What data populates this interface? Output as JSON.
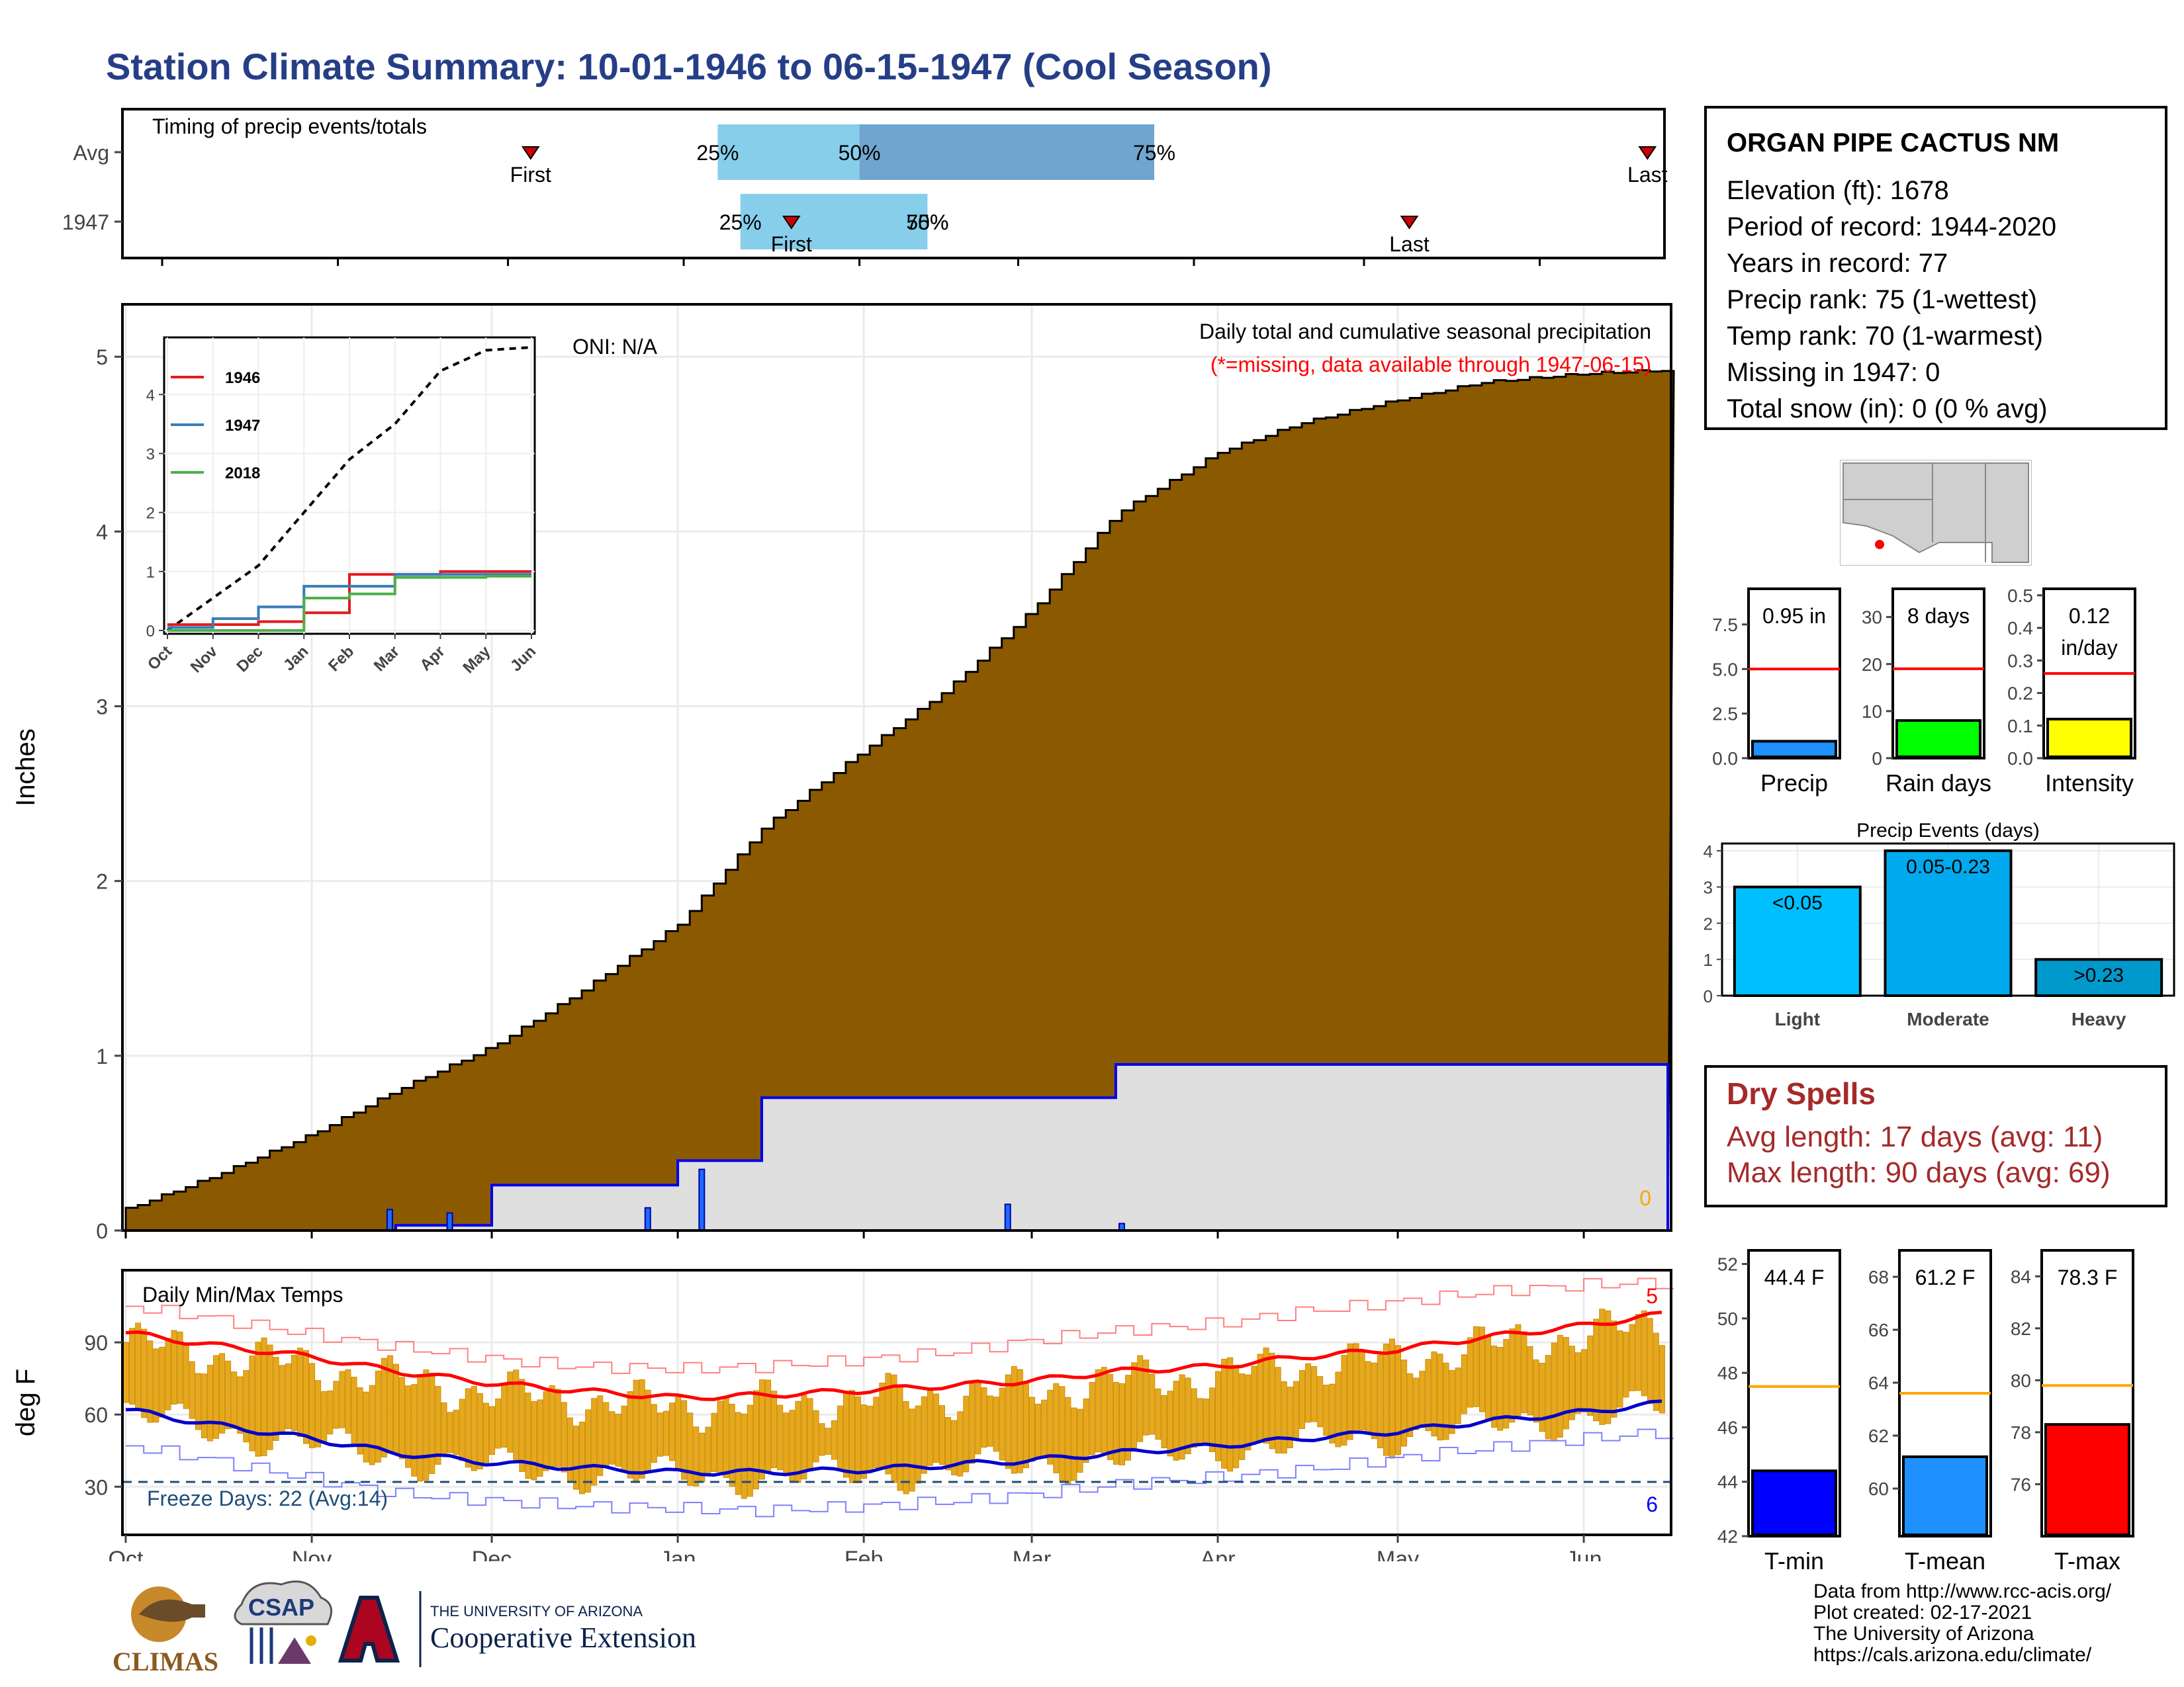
{
  "title": "Station Climate Summary: 10-01-1946 to 06-15-1947 (Cool Season)",
  "timing": {
    "title": "Timing of precip events/totals",
    "rows": [
      {
        "label": "Avg",
        "first": "First",
        "last": "Last",
        "p25": "25%",
        "p50": "50%",
        "p75": "75%"
      },
      {
        "label": "1947",
        "first": "First",
        "last": "Last",
        "p25": "25%",
        "p50": "50%",
        "p75": "75%"
      }
    ]
  },
  "station": {
    "name": "ORGAN PIPE CACTUS NM",
    "lines": [
      "Elevation (ft): 1678",
      "Period of record: 1944-2020",
      "Years in record: 77",
      "Precip rank: 75 (1-wettest)",
      "Temp rank: 70 (1-warmest)",
      "Missing in 1947: 0",
      "Total snow (in): 0 (0 % avg)"
    ]
  },
  "precip_panel": {
    "ylabel": "Inches",
    "oni": "ONI: N/A",
    "subtitle": "Daily total and cumulative seasonal precipitation",
    "missing_note": "(*=missing, data available through 1947-06-15)",
    "missing_count": "0",
    "yticks": [
      "0",
      "1",
      "2",
      "3",
      "4",
      "5"
    ]
  },
  "inset": {
    "legend": [
      "1946",
      "1947",
      "2018"
    ],
    "yticks": [
      "0",
      "1",
      "2",
      "3",
      "4"
    ],
    "xticks": [
      "Oct",
      "Nov",
      "Dec",
      "Jan",
      "Feb",
      "Mar",
      "Apr",
      "May",
      "Jun"
    ]
  },
  "temp_panel": {
    "title": "Daily Min/Max Temps",
    "ylabel": "deg F",
    "freeze_label": "Freeze Days: 22 (Avg:14)",
    "record_high_count": "5",
    "record_low_count": "6",
    "yticks": [
      "30",
      "60",
      "90"
    ]
  },
  "months": [
    "Oct",
    "Nov",
    "Dec",
    "Jan",
    "Feb",
    "Mar",
    "Apr",
    "May",
    "Jun"
  ],
  "summary_bars": [
    {
      "label": "Precip",
      "value_label": "0.95 in",
      "yticks": [
        "0.0",
        "2.5",
        "5.0",
        "7.5"
      ]
    },
    {
      "label": "Rain days",
      "value_label": "8 days",
      "yticks": [
        "0",
        "10",
        "20",
        "30"
      ]
    },
    {
      "label": "Intensity",
      "value_label": "0.12\nin/day",
      "value_line1": "0.12",
      "value_line2": "in/day",
      "yticks": [
        "0.0",
        "0.1",
        "0.2",
        "0.3",
        "0.4",
        "0.5"
      ]
    }
  ],
  "events": {
    "title": "Precip Events (days)",
    "yticks": [
      "0",
      "1",
      "2",
      "3",
      "4"
    ],
    "bars": [
      {
        "cat": "Light",
        "label": "<0.05"
      },
      {
        "cat": "Moderate",
        "label": "0.05-0.23"
      },
      {
        "cat": "Heavy",
        "label": ">0.23"
      }
    ]
  },
  "dry_spells": {
    "title": "Dry Spells",
    "avg_line": "Avg length: 17 days (avg: 11)",
    "max_line": "Max length: 90 days (avg: 69)"
  },
  "temp_bars": [
    {
      "label": "T-min",
      "value_label": "44.4 F",
      "yticks": [
        "42",
        "44",
        "46",
        "48",
        "50",
        "52"
      ]
    },
    {
      "label": "T-mean",
      "value_label": "61.2 F",
      "yticks": [
        "60",
        "62",
        "64",
        "66",
        "68"
      ]
    },
    {
      "label": "T-max",
      "value_label": "78.3 F",
      "yticks": [
        "76",
        "78",
        "80",
        "82",
        "84"
      ]
    }
  ],
  "logos": {
    "climas": "CLIMAS",
    "csap": "CSAP",
    "ua_small": "THE UNIVERSITY OF ARIZONA",
    "ua_big": "Cooperative Extension"
  },
  "credits": [
    "Data from http://www.rcc-acis.org/",
    "Plot created: 02-17-2021",
    "The University of Arizona",
    "https://cals.arizona.edu/climate/"
  ],
  "colors": {
    "title": "#253e86",
    "cumulative_fill": "#8b5a00",
    "normal_fill": "#dfdfdf",
    "precip_line": "#0000ee",
    "tmax": "#ff0000",
    "tmin": "#0000cc",
    "range_bar": "#e8a81c",
    "dry_text": "#a52a2a"
  },
  "chart_data": [
    {
      "type": "bar",
      "name": "timing",
      "categories": [
        "Avg",
        "1947"
      ],
      "x_unit": "day of season (0 = Oct 1)",
      "series": [
        {
          "name": "First",
          "values": [
            65,
            111
          ]
        },
        {
          "name": "25%",
          "values": [
            98,
            102
          ]
        },
        {
          "name": "50%",
          "values": [
            123,
            135
          ]
        },
        {
          "name": "75%",
          "values": [
            175,
            135
          ]
        },
        {
          "name": "Last",
          "values": [
            262,
            220
          ]
        }
      ]
    },
    {
      "type": "area",
      "name": "cumulative precipitation",
      "ylabel": "Inches",
      "ylim": [
        0,
        5.3
      ],
      "x": [
        "1946-10-01",
        "1946-10-15",
        "1946-11-01",
        "1946-11-15",
        "1946-12-01",
        "1946-12-15",
        "1947-01-01",
        "1947-01-15",
        "1947-02-01",
        "1947-02-15",
        "1947-03-01",
        "1947-03-15",
        "1947-04-01",
        "1947-04-15",
        "1947-05-01",
        "1947-05-15",
        "1947-06-01",
        "1947-06-15"
      ],
      "series": [
        {
          "name": "cumulative average",
          "values": [
            0.12,
            0.3,
            0.55,
            0.8,
            1.05,
            1.35,
            1.75,
            2.3,
            2.75,
            3.1,
            3.55,
            4.1,
            4.45,
            4.62,
            4.75,
            4.85,
            4.9,
            4.92
          ]
        },
        {
          "name": "1947 cumulative",
          "values": [
            0.0,
            0.0,
            0.0,
            0.03,
            0.26,
            0.26,
            0.4,
            0.76,
            0.76,
            0.76,
            0.76,
            0.95,
            0.95,
            0.95,
            0.95,
            0.95,
            0.95,
            0.95
          ]
        }
      ],
      "daily_events": [
        {
          "x": "1946-11-14",
          "value": 0.12
        },
        {
          "x": "1946-11-24",
          "value": 0.1
        },
        {
          "x": "1946-12-27",
          "value": 0.13
        },
        {
          "x": "1947-01-05",
          "value": 0.35
        },
        {
          "x": "1947-02-25",
          "value": 0.15
        },
        {
          "x": "1947-03-16",
          "value": 0.04
        }
      ]
    },
    {
      "type": "line",
      "name": "inset cumulative",
      "ylim": [
        0,
        4.8
      ],
      "x": [
        "Oct",
        "Nov",
        "Dec",
        "Jan",
        "Feb",
        "Mar",
        "Apr",
        "May",
        "Jun"
      ],
      "series": [
        {
          "name": "average",
          "values": [
            0.0,
            0.55,
            1.1,
            2.0,
            2.9,
            3.5,
            4.4,
            4.75,
            4.8
          ]
        },
        {
          "name": "1946",
          "values": [
            0.1,
            0.1,
            0.15,
            0.3,
            0.95,
            0.95,
            1.0,
            1.0,
            1.0
          ]
        },
        {
          "name": "1947",
          "values": [
            0.05,
            0.2,
            0.4,
            0.75,
            0.75,
            0.95,
            0.95,
            0.95,
            0.95
          ]
        },
        {
          "name": "2018",
          "values": [
            0.0,
            0.0,
            0.0,
            0.55,
            0.62,
            0.9,
            0.9,
            0.92,
            0.92
          ]
        }
      ]
    },
    {
      "type": "line",
      "name": "temperatures",
      "ylabel": "deg F",
      "ylim": [
        10,
        120
      ],
      "x": [
        "1946-10-01",
        "1946-10-15",
        "1946-11-01",
        "1946-11-15",
        "1946-12-01",
        "1946-12-15",
        "1947-01-01",
        "1947-01-15",
        "1947-02-01",
        "1947-02-15",
        "1947-03-01",
        "1947-03-15",
        "1947-04-01",
        "1947-04-15",
        "1947-05-01",
        "1947-05-15",
        "1947-06-01",
        "1947-06-15"
      ],
      "series": [
        {
          "name": "avg max",
          "values": [
            94,
            89,
            84,
            78,
            73,
            70,
            67,
            68,
            70,
            72,
            74,
            78,
            80,
            84,
            87,
            92,
            97,
            102
          ]
        },
        {
          "name": "avg min",
          "values": [
            62,
            56,
            50,
            44,
            40,
            38,
            36,
            36,
            37,
            39,
            41,
            44,
            47,
            50,
            53,
            57,
            61,
            65
          ]
        },
        {
          "name": "record max",
          "values": [
            105,
            100,
            93,
            88,
            83,
            80,
            79,
            80,
            83,
            86,
            91,
            95,
            98,
            103,
            107,
            111,
            114,
            115
          ]
        },
        {
          "name": "record min",
          "values": [
            47,
            41,
            33,
            27,
            24,
            22,
            21,
            20,
            22,
            24,
            27,
            31,
            34,
            37,
            42,
            46,
            50,
            53
          ]
        },
        {
          "name": "freeze",
          "values": [
            32,
            32,
            32,
            32,
            32,
            32,
            32,
            32,
            32,
            32,
            32,
            32,
            32,
            32,
            32,
            32,
            32,
            32
          ]
        }
      ]
    },
    {
      "type": "bar",
      "name": "Precip",
      "categories": [
        "Precip"
      ],
      "values": [
        0.95
      ],
      "normal": 5.0,
      "ylim": [
        0,
        9.5
      ]
    },
    {
      "type": "bar",
      "name": "Rain days",
      "categories": [
        "Rain days"
      ],
      "values": [
        8
      ],
      "normal": 19,
      "ylim": [
        0,
        36
      ]
    },
    {
      "type": "bar",
      "name": "Intensity",
      "categories": [
        "Intensity"
      ],
      "values": [
        0.12
      ],
      "normal": 0.26,
      "ylim": [
        0,
        0.52
      ]
    },
    {
      "type": "bar",
      "name": "Precip Events (days)",
      "categories": [
        "Light",
        "Moderate",
        "Heavy"
      ],
      "values": [
        3,
        4,
        1
      ],
      "ylim": [
        0,
        4.2
      ]
    },
    {
      "type": "bar",
      "name": "T-min",
      "categories": [
        "T-min"
      ],
      "values": [
        44.4
      ],
      "normal": 47.5,
      "ylim": [
        42,
        52.5
      ]
    },
    {
      "type": "bar",
      "name": "T-mean",
      "categories": [
        "T-mean"
      ],
      "values": [
        61.2
      ],
      "normal": 63.6,
      "ylim": [
        58.2,
        69
      ]
    },
    {
      "type": "bar",
      "name": "T-max",
      "categories": [
        "T-max"
      ],
      "values": [
        78.3
      ],
      "normal": 79.8,
      "ylim": [
        74,
        85
      ]
    }
  ]
}
